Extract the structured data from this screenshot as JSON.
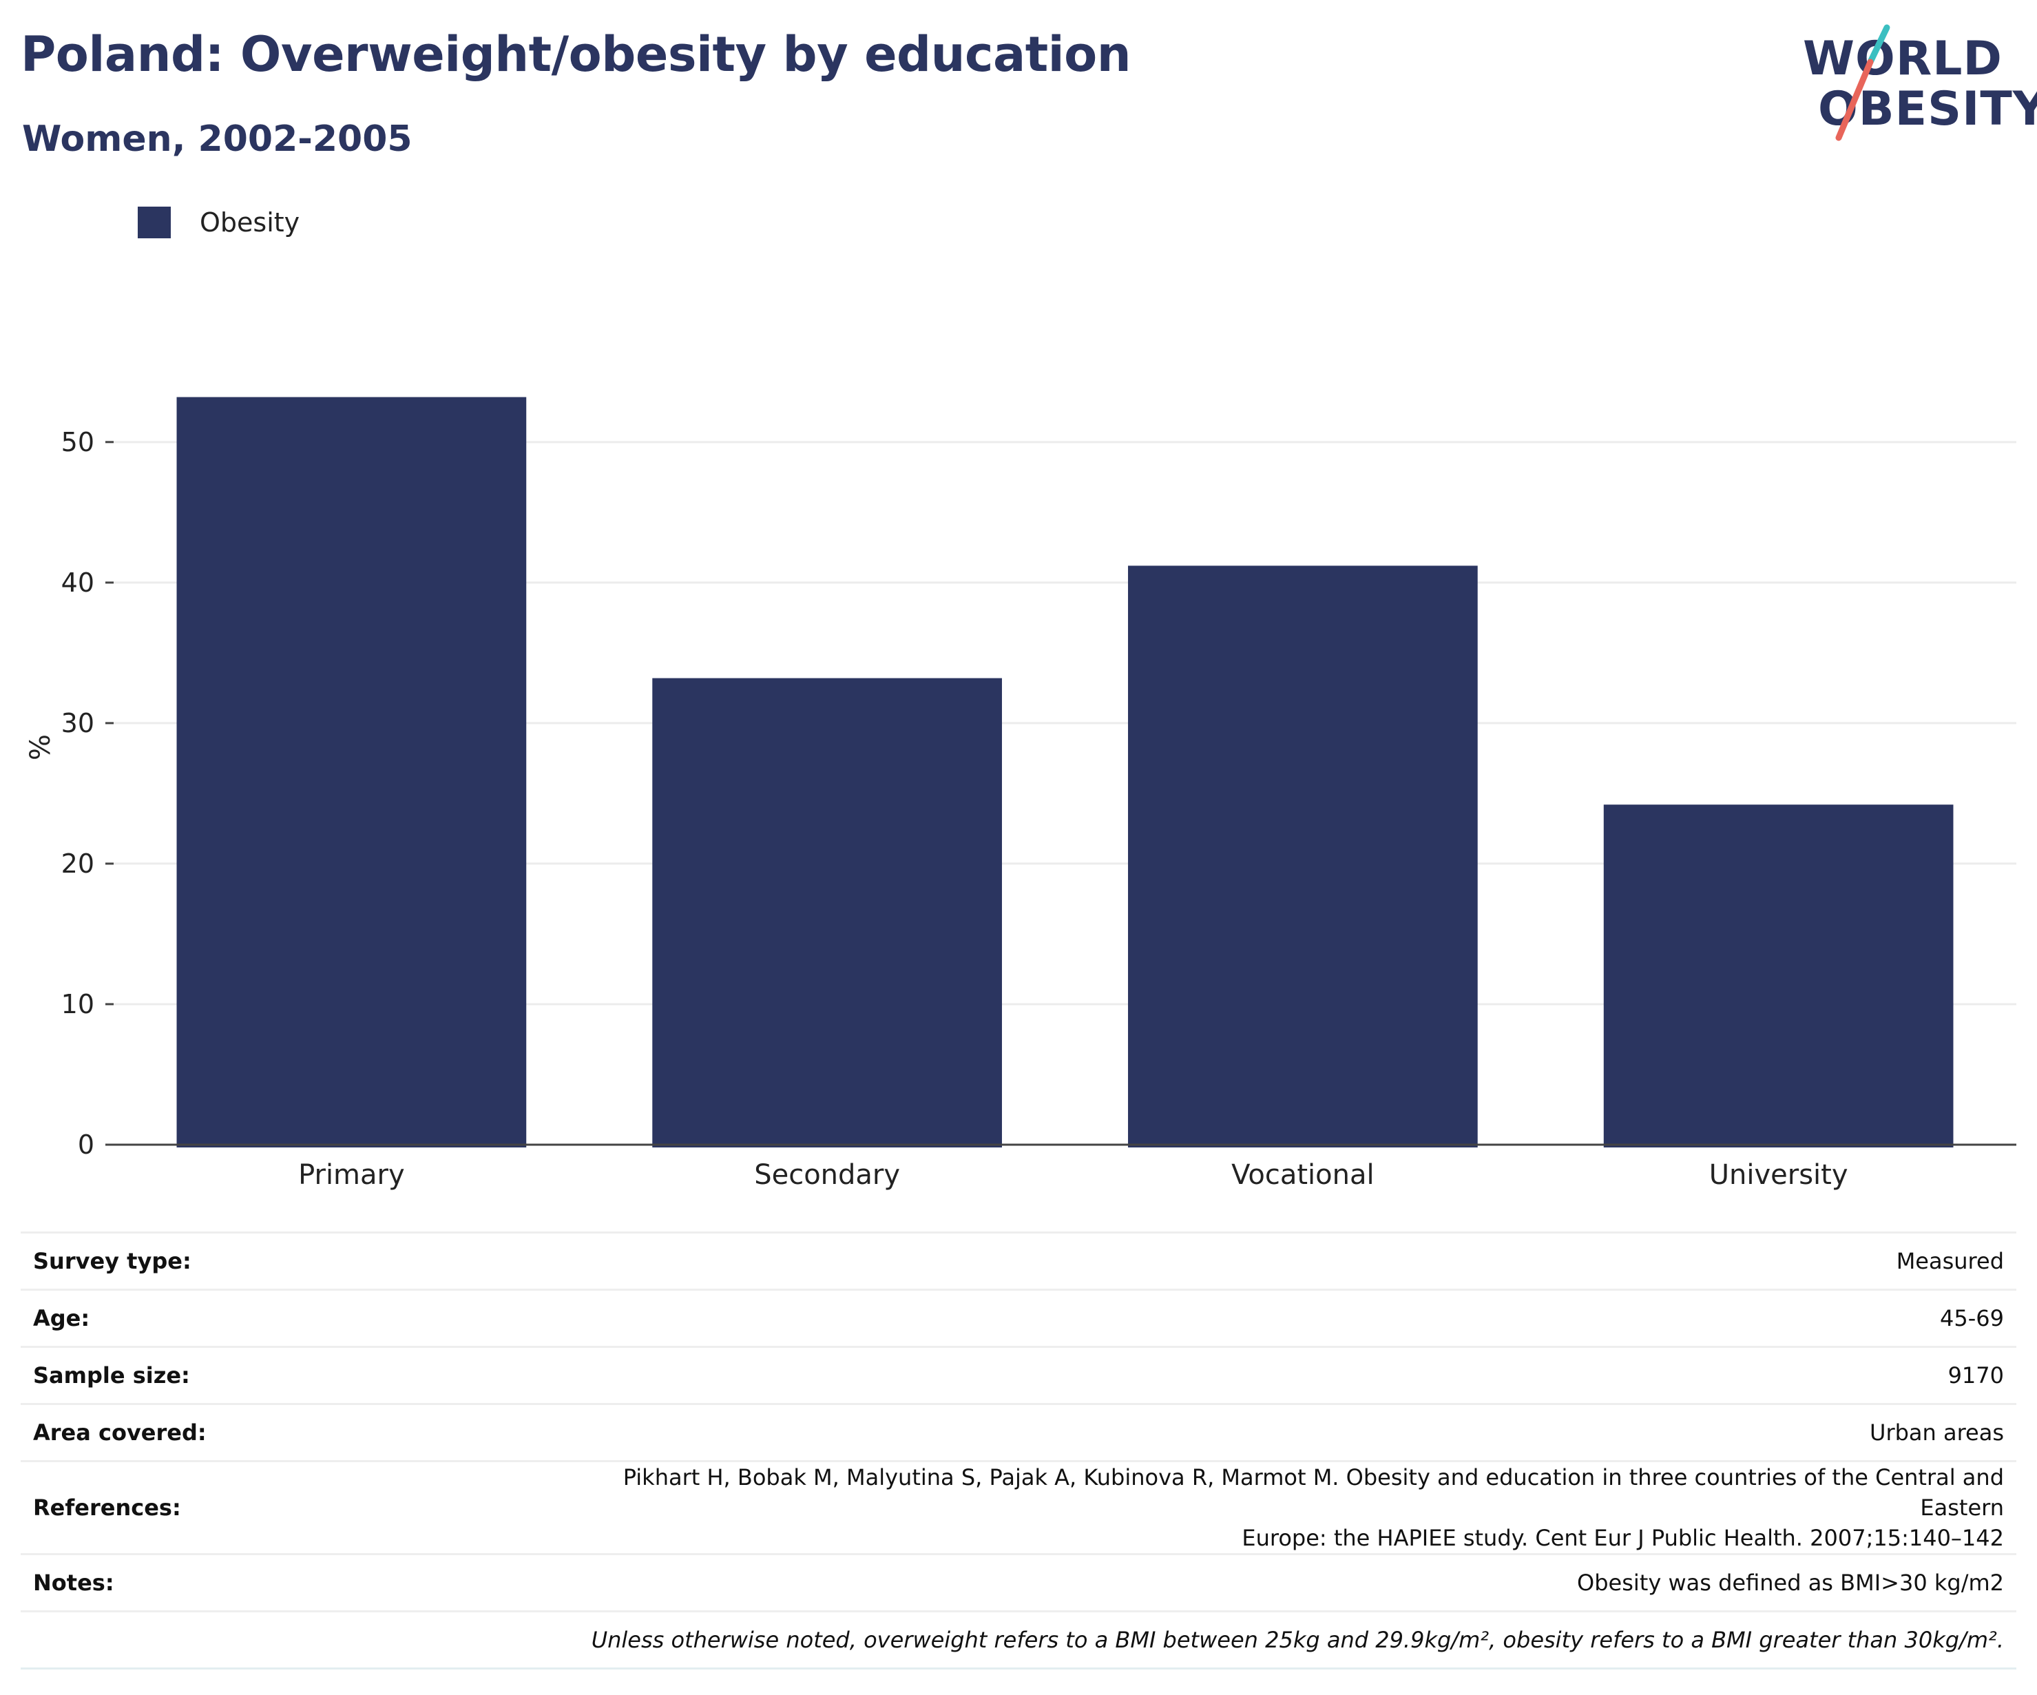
{
  "header": {
    "title": "Poland: Overweight/obesity by education",
    "subtitle": "Women, 2002-2005"
  },
  "logo": {
    "line1": "WORLD",
    "line2": "OBESITY",
    "accent_colors": [
      "#3bbfc1",
      "#e8655a"
    ]
  },
  "legend": {
    "items": [
      {
        "label": "Obesity",
        "color": "#2b3560"
      }
    ]
  },
  "chart_data": {
    "type": "bar",
    "categories": [
      "Primary",
      "Secondary",
      "Vocational",
      "University"
    ],
    "series": [
      {
        "name": "Obesity",
        "values": [
          53.2,
          33.2,
          41.2,
          24.2
        ],
        "color": "#2b3560"
      }
    ],
    "title": "Poland: Overweight/obesity by education",
    "subtitle": "Women, 2002-2005",
    "xlabel": "",
    "ylabel": "%",
    "yticks": [
      0,
      10,
      20,
      30,
      40,
      50
    ],
    "ylim": [
      0,
      57
    ],
    "grid": true,
    "legend_position": "top-left"
  },
  "info": {
    "rows": [
      {
        "key": "Survey type:",
        "value": "Measured"
      },
      {
        "key": "Age:",
        "value": "45-69"
      },
      {
        "key": "Sample size:",
        "value": "9170"
      },
      {
        "key": "Area covered:",
        "value": "Urban areas"
      },
      {
        "key": "References:",
        "value_line1": "Pikhart H, Bobak M, Malyutina S, Pajak A, Kubinova R, Marmot M. Obesity and education in three countries of the Central and Eastern",
        "value_line2": "Europe: the HAPIEE study. Cent Eur J Public Health. 2007;15:140–142"
      },
      {
        "key": "Notes:",
        "value": "Obesity was defined as BMI>30 kg/m2"
      }
    ],
    "footnote": "Unless otherwise noted, overweight refers to a BMI between 25kg and 29.9kg/m², obesity refers to a BMI greater than 30kg/m²."
  }
}
